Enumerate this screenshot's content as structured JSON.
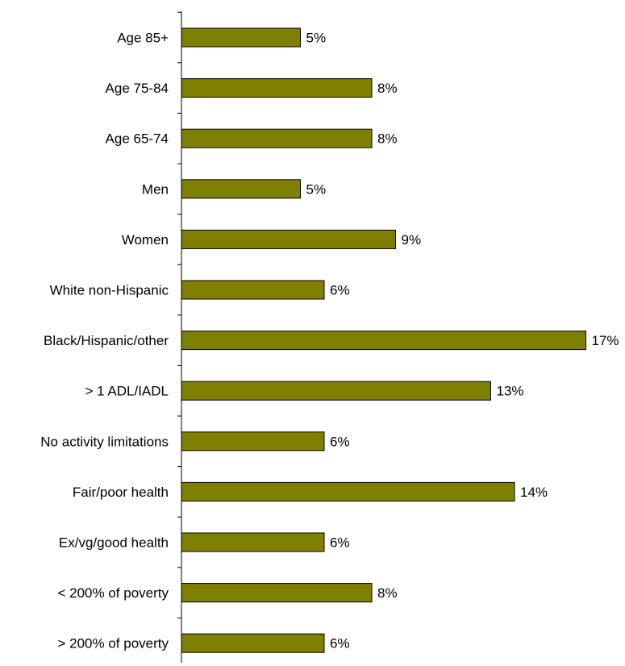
{
  "chart_data": {
    "type": "bar",
    "orientation": "horizontal",
    "categories": [
      "Age 85+",
      "Age 75-84",
      "Age 65-74",
      "Men",
      "Women",
      "White non-Hispanic",
      "Black/Hispanic/other",
      "> 1 ADL/IADL",
      "No activity limitations",
      "Fair/poor health",
      "Ex/vg/good health",
      "< 200% of poverty",
      "> 200% of poverty"
    ],
    "values": [
      5,
      8,
      8,
      5,
      9,
      6,
      17,
      13,
      6,
      14,
      6,
      8,
      6
    ],
    "data_labels": [
      "5%",
      "8%",
      "8%",
      "5%",
      "9%",
      "6%",
      "17%",
      "13%",
      "6%",
      "14%",
      "6%",
      "8%",
      "6%"
    ],
    "title": "",
    "xlabel": "",
    "ylabel": "",
    "xlim": [
      0,
      17
    ],
    "grid": false,
    "legend": "none",
    "bar_color": "#808000",
    "bar_edge_color": "#000000"
  }
}
